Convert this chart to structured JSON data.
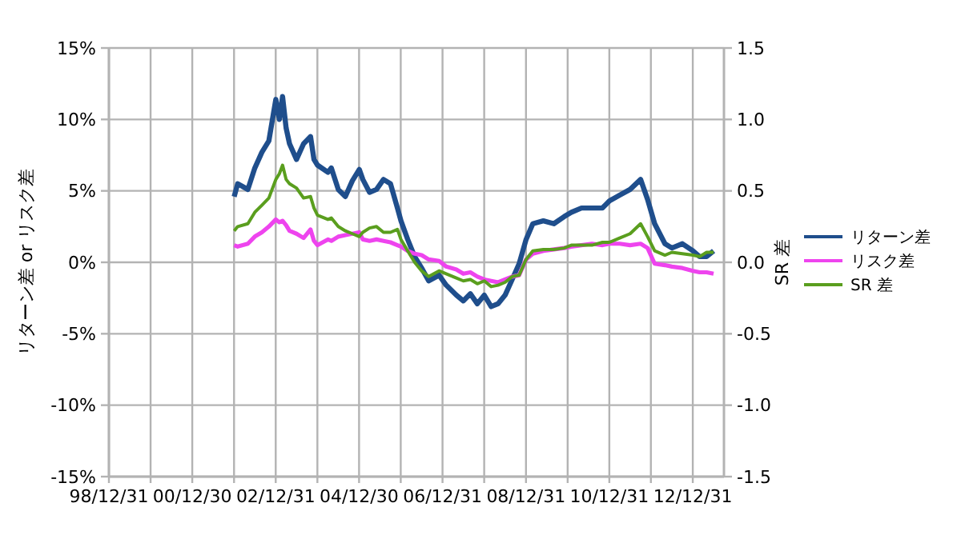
{
  "chart_data": {
    "type": "line",
    "ylabel": "リターン差 or リスク差",
    "y2label": "SR 差",
    "x": [
      "2002-01",
      "2002-02",
      "2002-05",
      "2002-07",
      "2002-09",
      "2002-11",
      "2003-01",
      "2003-02",
      "2003-03",
      "2003-04",
      "2003-05",
      "2003-07",
      "2003-09",
      "2003-11",
      "2003-12",
      "2004-01",
      "2004-04",
      "2004-05",
      "2004-07",
      "2004-09",
      "2004-11",
      "2005-01",
      "2005-02",
      "2005-04",
      "2005-06",
      "2005-08",
      "2005-10",
      "2005-12",
      "2006-01",
      "2006-03",
      "2006-05",
      "2006-07",
      "2006-09",
      "2006-12",
      "2007-02",
      "2007-05",
      "2007-07",
      "2007-09",
      "2007-11",
      "2008-01",
      "2008-03",
      "2008-05",
      "2008-07",
      "2008-09",
      "2008-11",
      "2009-01",
      "2009-03",
      "2009-06",
      "2009-09",
      "2009-12",
      "2010-02",
      "2010-05",
      "2010-08",
      "2010-11",
      "2011-01",
      "2011-04",
      "2011-07",
      "2011-10",
      "2011-12",
      "2012-02",
      "2012-05",
      "2012-07",
      "2012-10",
      "2013-01",
      "2013-03",
      "2013-05",
      "2013-07"
    ],
    "series": [
      {
        "name": "リターン差",
        "color": "#1f4e8c",
        "values": [
          4.6,
          5.5,
          5.1,
          6.6,
          7.7,
          8.5,
          11.4,
          10.0,
          11.6,
          9.4,
          8.3,
          7.2,
          8.3,
          8.8,
          7.2,
          6.8,
          6.3,
          6.6,
          5.1,
          4.6,
          5.7,
          6.5,
          5.8,
          4.9,
          5.1,
          5.8,
          5.5,
          3.8,
          2.9,
          1.6,
          0.4,
          -0.4,
          -1.3,
          -0.9,
          -1.6,
          -2.3,
          -2.7,
          -2.2,
          -2.9,
          -2.3,
          -3.1,
          -2.9,
          -2.3,
          -1.2,
          -0.1,
          1.6,
          2.7,
          2.9,
          2.7,
          3.2,
          3.5,
          3.8,
          3.8,
          3.8,
          4.3,
          4.7,
          5.1,
          5.8,
          4.4,
          2.7,
          1.3,
          1.0,
          1.3,
          0.8,
          0.4,
          0.4,
          0.8
        ]
      },
      {
        "name": "リスク差",
        "color": "#ee44ee",
        "values": [
          1.2,
          1.1,
          1.3,
          1.8,
          2.1,
          2.5,
          3.0,
          2.8,
          2.9,
          2.6,
          2.2,
          2.0,
          1.7,
          2.3,
          1.5,
          1.2,
          1.6,
          1.5,
          1.8,
          1.9,
          2.0,
          2.1,
          1.6,
          1.5,
          1.6,
          1.5,
          1.4,
          1.2,
          1.1,
          0.8,
          0.6,
          0.5,
          0.2,
          0.1,
          -0.3,
          -0.5,
          -0.8,
          -0.7,
          -1.0,
          -1.2,
          -1.3,
          -1.4,
          -1.2,
          -1.0,
          -0.9,
          0.2,
          0.6,
          0.8,
          0.9,
          1.0,
          1.1,
          1.2,
          1.3,
          1.2,
          1.3,
          1.3,
          1.2,
          1.3,
          1.0,
          -0.1,
          -0.2,
          -0.3,
          -0.4,
          -0.6,
          -0.7,
          -0.7,
          -0.8
        ]
      },
      {
        "name": "SR 差",
        "color": "#5a9e1e",
        "axis": "y2",
        "values": [
          0.22,
          0.25,
          0.27,
          0.35,
          0.4,
          0.45,
          0.58,
          0.62,
          0.68,
          0.58,
          0.55,
          0.52,
          0.45,
          0.46,
          0.38,
          0.33,
          0.3,
          0.31,
          0.25,
          0.22,
          0.2,
          0.18,
          0.21,
          0.24,
          0.25,
          0.21,
          0.21,
          0.23,
          0.16,
          0.08,
          0.0,
          -0.06,
          -0.1,
          -0.06,
          -0.08,
          -0.11,
          -0.13,
          -0.12,
          -0.15,
          -0.13,
          -0.17,
          -0.16,
          -0.14,
          -0.1,
          -0.09,
          0.02,
          0.08,
          0.09,
          0.09,
          0.1,
          0.12,
          0.12,
          0.12,
          0.14,
          0.14,
          0.17,
          0.2,
          0.27,
          0.18,
          0.08,
          0.05,
          0.07,
          0.06,
          0.05,
          0.04,
          0.07,
          0.07
        ]
      }
    ],
    "xlim": [
      "1998-12-31",
      "2013-09-30"
    ],
    "xticks": [
      {
        "value": "1998-12-31",
        "label": "98/12/31"
      },
      {
        "value": "1999-12-31",
        "label": null
      },
      {
        "value": "2000-12-30",
        "label": "00/12/30"
      },
      {
        "value": "2001-12-31",
        "label": null
      },
      {
        "value": "2002-12-31",
        "label": "02/12/31"
      },
      {
        "value": "2003-12-31",
        "label": null
      },
      {
        "value": "2004-12-30",
        "label": "04/12/30"
      },
      {
        "value": "2005-12-30",
        "label": null
      },
      {
        "value": "2006-12-31",
        "label": "06/12/31"
      },
      {
        "value": "2007-12-31",
        "label": null
      },
      {
        "value": "2008-12-31",
        "label": "08/12/31"
      },
      {
        "value": "2009-12-31",
        "label": null
      },
      {
        "value": "2010-12-31",
        "label": "10/12/31"
      },
      {
        "value": "2011-12-30",
        "label": null
      },
      {
        "value": "2012-12-31",
        "label": "12/12/31"
      }
    ],
    "ylim": [
      -15,
      15
    ],
    "yticks": [
      {
        "value": -15,
        "label": "-15%"
      },
      {
        "value": -10,
        "label": "-10%"
      },
      {
        "value": -5,
        "label": "-5%"
      },
      {
        "value": 0,
        "label": "0%"
      },
      {
        "value": 5,
        "label": "5%"
      },
      {
        "value": 10,
        "label": "10%"
      },
      {
        "value": 15,
        "label": "15%"
      }
    ],
    "y2lim": [
      -1.5,
      1.5
    ],
    "y2ticks": [
      -1.5,
      {
        "value": -1,
        "label": "-1.0"
      },
      -0.5,
      {
        "value": 0,
        "label": "0.0"
      },
      0.5,
      {
        "value": 1,
        "label": "1.0"
      },
      1.5
    ],
    "grid": true,
    "legend": "right",
    "marker": "none",
    "line_style": "solid"
  }
}
